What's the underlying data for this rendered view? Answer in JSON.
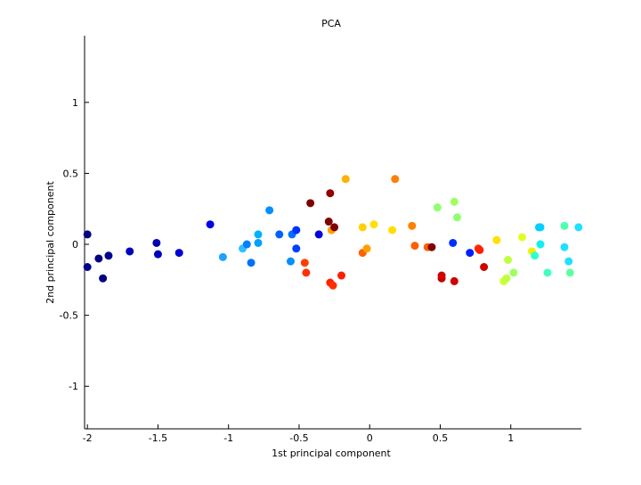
{
  "chart_data": {
    "type": "scatter",
    "title": "PCA",
    "xlabel": "1st principal component",
    "ylabel": "2nd principal component",
    "xlim": [
      -2.02,
      1.5
    ],
    "ylim": [
      -1.3,
      1.47
    ],
    "xticks": [
      -2,
      -1.5,
      -1,
      -0.5,
      0,
      0.5,
      1
    ],
    "xtick_labels": [
      "-2",
      "-1.5",
      "-1",
      "-0.5",
      "0",
      "0.5",
      "1"
    ],
    "yticks": [
      -1,
      -0.5,
      0,
      0.5,
      1
    ],
    "ytick_labels": [
      "-1",
      "-0.5",
      "0",
      "0.5",
      "1"
    ],
    "grid": false,
    "box": "left-bottom axes only",
    "colormap": "jet",
    "points": [
      {
        "x": -2.0,
        "y": 0.07,
        "color": "#000080"
      },
      {
        "x": -2.0,
        "y": -0.16,
        "color": "#00008f"
      },
      {
        "x": -1.92,
        "y": -0.1,
        "color": "#000080"
      },
      {
        "x": -1.89,
        "y": -0.24,
        "color": "#000080"
      },
      {
        "x": -1.85,
        "y": -0.08,
        "color": "#00008f"
      },
      {
        "x": -1.7,
        "y": -0.05,
        "color": "#0000bf"
      },
      {
        "x": -1.51,
        "y": 0.01,
        "color": "#0000b0"
      },
      {
        "x": -1.5,
        "y": -0.07,
        "color": "#0000c0"
      },
      {
        "x": -1.35,
        "y": -0.06,
        "color": "#0000d0"
      },
      {
        "x": -1.13,
        "y": 0.14,
        "color": "#0000e8"
      },
      {
        "x": -1.04,
        "y": -0.09,
        "color": "#20a0ff"
      },
      {
        "x": -0.9,
        "y": -0.03,
        "color": "#30c0ff"
      },
      {
        "x": -0.87,
        "y": 0.0,
        "color": "#0080ff"
      },
      {
        "x": -0.84,
        "y": -0.13,
        "color": "#0070ff"
      },
      {
        "x": -0.79,
        "y": 0.07,
        "color": "#00b0ff"
      },
      {
        "x": -0.79,
        "y": 0.01,
        "color": "#00a0ff"
      },
      {
        "x": -0.71,
        "y": 0.24,
        "color": "#0090ff"
      },
      {
        "x": -0.64,
        "y": 0.07,
        "color": "#0060ff"
      },
      {
        "x": -0.56,
        "y": -0.12,
        "color": "#0090ff"
      },
      {
        "x": -0.55,
        "y": 0.07,
        "color": "#0070ff"
      },
      {
        "x": -0.52,
        "y": 0.1,
        "color": "#0030ff"
      },
      {
        "x": -0.52,
        "y": -0.03,
        "color": "#0040ff"
      },
      {
        "x": -0.46,
        "y": -0.13,
        "color": "#ff4000"
      },
      {
        "x": -0.45,
        "y": -0.2,
        "color": "#ff3000"
      },
      {
        "x": -0.42,
        "y": 0.29,
        "color": "#800000"
      },
      {
        "x": -0.36,
        "y": 0.07,
        "color": "#0000e0"
      },
      {
        "x": -0.29,
        "y": 0.16,
        "color": "#800000"
      },
      {
        "x": -0.28,
        "y": 0.36,
        "color": "#900000"
      },
      {
        "x": -0.28,
        "y": -0.27,
        "color": "#ff2000"
      },
      {
        "x": -0.27,
        "y": 0.1,
        "color": "#ffa000"
      },
      {
        "x": -0.26,
        "y": -0.29,
        "color": "#ff3000"
      },
      {
        "x": -0.25,
        "y": 0.12,
        "color": "#800000"
      },
      {
        "x": -0.2,
        "y": -0.22,
        "color": "#ff2000"
      },
      {
        "x": -0.17,
        "y": 0.46,
        "color": "#ffb000"
      },
      {
        "x": -0.05,
        "y": 0.12,
        "color": "#ffd000"
      },
      {
        "x": -0.05,
        "y": -0.06,
        "color": "#ff6000"
      },
      {
        "x": -0.02,
        "y": -0.03,
        "color": "#ffa000"
      },
      {
        "x": 0.03,
        "y": 0.14,
        "color": "#ffe000"
      },
      {
        "x": 0.16,
        "y": 0.1,
        "color": "#ffe000"
      },
      {
        "x": 0.18,
        "y": 0.46,
        "color": "#ff8000"
      },
      {
        "x": 0.3,
        "y": 0.13,
        "color": "#ff8000"
      },
      {
        "x": 0.32,
        "y": -0.01,
        "color": "#ff6000"
      },
      {
        "x": 0.41,
        "y": -0.02,
        "color": "#ff6000"
      },
      {
        "x": 0.44,
        "y": -0.02,
        "color": "#800000"
      },
      {
        "x": 0.48,
        "y": 0.26,
        "color": "#90ff70"
      },
      {
        "x": 0.51,
        "y": -0.24,
        "color": "#c00000"
      },
      {
        "x": 0.51,
        "y": -0.22,
        "color": "#d00000"
      },
      {
        "x": 0.59,
        "y": 0.01,
        "color": "#0030ff"
      },
      {
        "x": 0.6,
        "y": -0.26,
        "color": "#d00000"
      },
      {
        "x": 0.6,
        "y": 0.3,
        "color": "#a0ff60"
      },
      {
        "x": 0.62,
        "y": 0.19,
        "color": "#90ff70"
      },
      {
        "x": 0.71,
        "y": -0.06,
        "color": "#0020ff"
      },
      {
        "x": 0.77,
        "y": -0.03,
        "color": "#ff3000"
      },
      {
        "x": 0.78,
        "y": -0.04,
        "color": "#ff2000"
      },
      {
        "x": 0.81,
        "y": -0.16,
        "color": "#d00000"
      },
      {
        "x": 0.9,
        "y": 0.03,
        "color": "#ffe000"
      },
      {
        "x": 0.95,
        "y": -0.26,
        "color": "#d0ff30"
      },
      {
        "x": 0.97,
        "y": -0.24,
        "color": "#c0ff40"
      },
      {
        "x": 0.98,
        "y": -0.11,
        "color": "#c0ff40"
      },
      {
        "x": 1.02,
        "y": -0.2,
        "color": "#a0ff60"
      },
      {
        "x": 1.08,
        "y": 0.05,
        "color": "#e0ff20"
      },
      {
        "x": 1.15,
        "y": -0.05,
        "color": "#f0f000"
      },
      {
        "x": 1.17,
        "y": -0.08,
        "color": "#30ffd0"
      },
      {
        "x": 1.2,
        "y": 0.12,
        "color": "#00d0ff"
      },
      {
        "x": 1.21,
        "y": 0.12,
        "color": "#00d0ff"
      },
      {
        "x": 1.21,
        "y": 0.0,
        "color": "#10f0f0"
      },
      {
        "x": 1.26,
        "y": -0.2,
        "color": "#40ffc0"
      },
      {
        "x": 1.38,
        "y": 0.13,
        "color": "#50ffb0"
      },
      {
        "x": 1.38,
        "y": -0.02,
        "color": "#20e0ff"
      },
      {
        "x": 1.41,
        "y": -0.12,
        "color": "#20e0ff"
      },
      {
        "x": 1.42,
        "y": -0.2,
        "color": "#60ffa0"
      },
      {
        "x": 1.48,
        "y": 0.12,
        "color": "#20e0ff"
      }
    ]
  }
}
